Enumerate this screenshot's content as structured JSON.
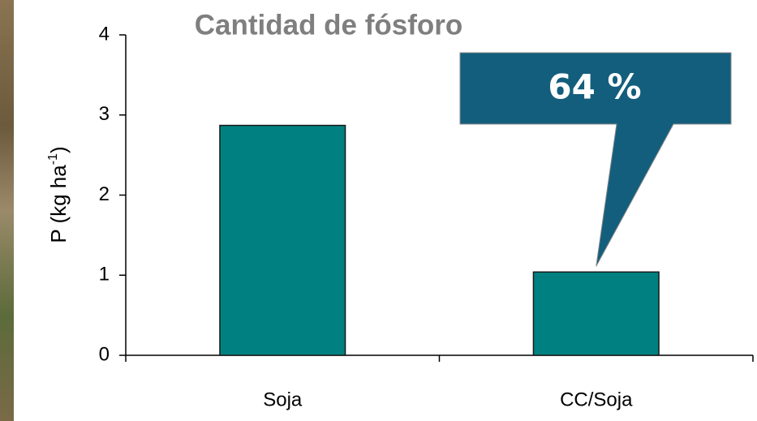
{
  "chart_data": {
    "type": "bar",
    "title": "Cantidad de fósforo",
    "ylabel": {
      "text": "P (kg ha",
      "sup": "-1",
      "close": ")"
    },
    "categories": [
      "Soja",
      "CC/Soja"
    ],
    "values": [
      2.87,
      1.04
    ],
    "color": "#008080",
    "ylim": [
      0,
      4
    ],
    "yticks": [
      0,
      1,
      2,
      3,
      4
    ],
    "annotation": "64 %",
    "annotation_color": "#135e7c"
  }
}
